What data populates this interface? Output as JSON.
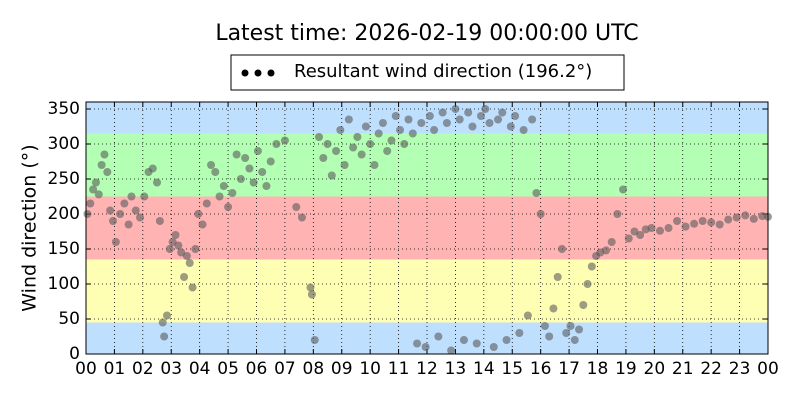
{
  "chart_data": {
    "type": "scatter",
    "title": "Latest time: 2026-02-19 00:00:00 UTC",
    "ylabel": "Wind direction (°)",
    "legend_loc": "upper center",
    "grid": true,
    "xlim": [
      0,
      24
    ],
    "ylim": [
      0,
      360
    ],
    "xticks": [
      {
        "value": 0,
        "label": "00"
      },
      {
        "value": 1,
        "label": "01"
      },
      {
        "value": 2,
        "label": "02"
      },
      {
        "value": 3,
        "label": "03"
      },
      {
        "value": 4,
        "label": "04"
      },
      {
        "value": 5,
        "label": "05"
      },
      {
        "value": 6,
        "label": "06"
      },
      {
        "value": 7,
        "label": "07"
      },
      {
        "value": 8,
        "label": "08"
      },
      {
        "value": 9,
        "label": "09"
      },
      {
        "value": 10,
        "label": "10"
      },
      {
        "value": 11,
        "label": "11"
      },
      {
        "value": 12,
        "label": "12"
      },
      {
        "value": 13,
        "label": "13"
      },
      {
        "value": 14,
        "label": "14"
      },
      {
        "value": 15,
        "label": "15"
      },
      {
        "value": 16,
        "label": "16"
      },
      {
        "value": 17,
        "label": "17"
      },
      {
        "value": 18,
        "label": "18"
      },
      {
        "value": 19,
        "label": "19"
      },
      {
        "value": 20,
        "label": "20"
      },
      {
        "value": 21,
        "label": "21"
      },
      {
        "value": 22,
        "label": "22"
      },
      {
        "value": 23,
        "label": "23"
      },
      {
        "value": 24,
        "label": "00"
      }
    ],
    "yticks": [
      0,
      50,
      100,
      150,
      200,
      250,
      300,
      350
    ],
    "bands": [
      {
        "from": 0,
        "to": 45,
        "color": "#bfdfff"
      },
      {
        "from": 45,
        "to": 135,
        "color": "#ffffb3"
      },
      {
        "from": 135,
        "to": 225,
        "color": "#ffb3b3"
      },
      {
        "from": 225,
        "to": 315,
        "color": "#b3ffb3"
      },
      {
        "from": 315,
        "to": 360,
        "color": "#bfdfff"
      }
    ],
    "series": [
      {
        "name": "Resultant wind direction (196.2°)",
        "color": "#5a5a5a",
        "x": [
          0.05,
          0.15,
          0.25,
          0.35,
          0.45,
          0.55,
          0.65,
          0.75,
          0.85,
          0.95,
          1.05,
          1.2,
          1.35,
          1.5,
          1.6,
          1.75,
          1.9,
          2.05,
          2.2,
          2.35,
          2.5,
          2.6,
          2.7,
          2.75,
          2.85,
          2.95,
          3.05,
          3.15,
          3.25,
          3.35,
          3.45,
          3.55,
          3.65,
          3.75,
          3.85,
          3.95,
          4.1,
          4.25,
          4.4,
          4.55,
          4.7,
          4.85,
          5.0,
          5.15,
          5.3,
          5.45,
          5.6,
          5.75,
          5.9,
          6.05,
          6.2,
          6.35,
          6.5,
          6.7,
          7.0,
          7.4,
          7.6,
          7.9,
          7.95,
          8.05,
          8.2,
          8.35,
          8.5,
          8.65,
          8.8,
          8.95,
          9.1,
          9.25,
          9.4,
          9.55,
          9.7,
          9.85,
          10.0,
          10.15,
          10.3,
          10.45,
          10.6,
          10.75,
          10.9,
          11.05,
          11.2,
          11.35,
          11.5,
          11.65,
          11.8,
          11.95,
          12.1,
          12.25,
          12.4,
          12.55,
          12.7,
          12.85,
          13.0,
          13.15,
          13.3,
          13.45,
          13.6,
          13.75,
          13.9,
          14.05,
          14.2,
          14.35,
          14.5,
          14.65,
          14.8,
          14.95,
          15.1,
          15.25,
          15.4,
          15.55,
          15.7,
          15.85,
          16.0,
          16.15,
          16.3,
          16.45,
          16.6,
          16.75,
          16.9,
          17.05,
          17.2,
          17.35,
          17.5,
          17.65,
          17.8,
          17.95,
          18.1,
          18.3,
          18.5,
          18.7,
          18.9,
          19.1,
          19.3,
          19.5,
          19.7,
          19.9,
          20.2,
          20.5,
          20.8,
          21.1,
          21.4,
          21.7,
          22.0,
          22.3,
          22.6,
          22.9,
          23.2,
          23.5,
          23.8,
          24.0
        ],
        "values": [
          200,
          215,
          235,
          245,
          228,
          270,
          285,
          260,
          205,
          190,
          160,
          200,
          215,
          185,
          225,
          205,
          195,
          225,
          260,
          265,
          245,
          190,
          45,
          25,
          55,
          150,
          160,
          170,
          155,
          145,
          110,
          140,
          130,
          95,
          150,
          200,
          185,
          215,
          270,
          260,
          225,
          240,
          210,
          230,
          285,
          250,
          280,
          265,
          245,
          290,
          260,
          240,
          275,
          300,
          305,
          210,
          195,
          95,
          85,
          20,
          310,
          280,
          300,
          255,
          290,
          320,
          270,
          335,
          295,
          310,
          285,
          325,
          300,
          270,
          315,
          330,
          290,
          305,
          340,
          320,
          300,
          335,
          315,
          15,
          330,
          10,
          340,
          320,
          25,
          345,
          330,
          5,
          350,
          335,
          20,
          345,
          325,
          15,
          340,
          350,
          330,
          10,
          335,
          345,
          20,
          325,
          340,
          30,
          320,
          55,
          335,
          230,
          200,
          40,
          25,
          65,
          110,
          150,
          30,
          40,
          20,
          35,
          70,
          100,
          125,
          140,
          145,
          148,
          160,
          200,
          235,
          165,
          175,
          170,
          178,
          180,
          176,
          180,
          190,
          182,
          186,
          190,
          188,
          185,
          192,
          195,
          198,
          193,
          197,
          196
        ]
      }
    ]
  }
}
